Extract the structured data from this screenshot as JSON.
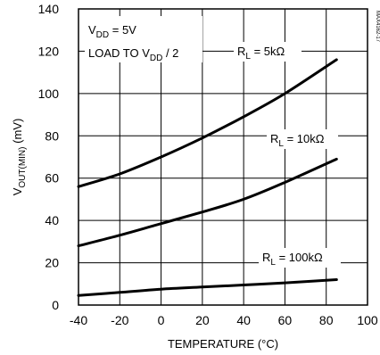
{
  "chart_data": {
    "type": "line",
    "xlabel": "TEMPERATURE (°C)",
    "ylabel": {
      "main": "V",
      "sub": "OUT(MIN)",
      "unit": " (mV)"
    },
    "xlim": [
      -40,
      100
    ],
    "ylim": [
      0,
      140
    ],
    "xticks": [
      -40,
      -20,
      0,
      20,
      40,
      60,
      80,
      100
    ],
    "yticks": [
      0,
      20,
      40,
      60,
      80,
      100,
      120,
      140
    ],
    "grid": true,
    "x": [
      -40,
      -20,
      0,
      20,
      40,
      60,
      85
    ],
    "series": [
      {
        "name": "RL = 5kΩ",
        "values": [
          56,
          62,
          70,
          79,
          89,
          100,
          116
        ]
      },
      {
        "name": "RL = 10kΩ",
        "values": [
          28,
          33,
          38.5,
          44,
          50,
          58,
          69
        ]
      },
      {
        "name": "RL = 100kΩ",
        "values": [
          4.5,
          6,
          7.5,
          8.5,
          9.5,
          10.5,
          12
        ]
      }
    ],
    "annotations": {
      "vdd": {
        "main": "V",
        "sub": "DD",
        "rest": " = 5V"
      },
      "load": {
        "main": "LOAD TO V",
        "sub": "DD",
        "rest": " / 2"
      },
      "labels": [
        {
          "main": "R",
          "sub": "L",
          "rest": " = 5kΩ"
        },
        {
          "main": "R",
          "sub": "L",
          "rest": " = 10kΩ"
        },
        {
          "main": "R",
          "sub": "L",
          "rest": " = 100kΩ"
        }
      ]
    },
    "part_number": "MAX4162-17"
  }
}
